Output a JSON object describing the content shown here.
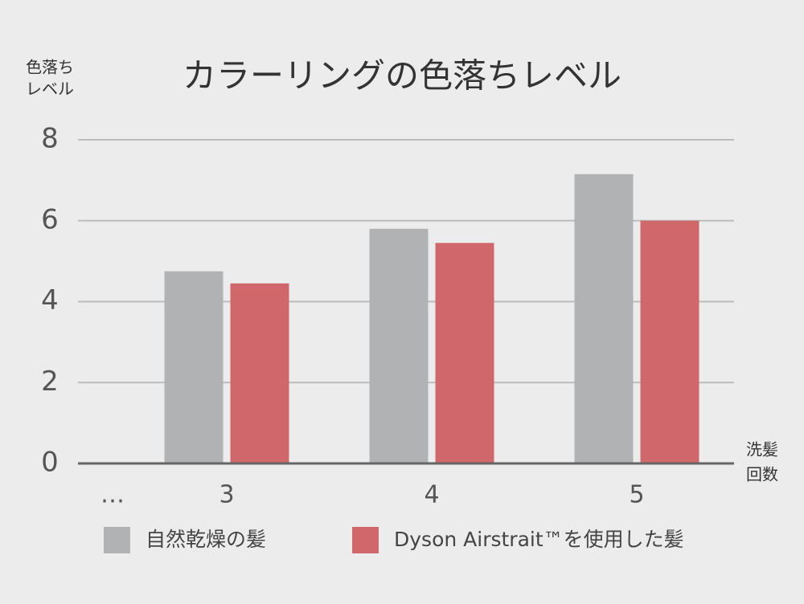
{
  "chart_data": {
    "type": "bar",
    "title": "カラーリングの色落ちレベル",
    "y_label": [
      "色落ち",
      "レベル"
    ],
    "x_label": [
      "洗髪",
      "回数"
    ],
    "categories": [
      "…",
      "3",
      "4",
      "5"
    ],
    "series": [
      {
        "name": "自然乾燥の髪",
        "color": "#b1b2b4",
        "values": [
          null,
          4.75,
          5.8,
          7.15
        ]
      },
      {
        "name": "Dyson Airstrait™を使用した髪",
        "color": "#cf676b",
        "values": [
          null,
          4.45,
          5.45,
          6.0
        ]
      }
    ],
    "ylim": [
      0,
      8
    ],
    "yticks": [
      0,
      2,
      4,
      6,
      8
    ],
    "grid": true
  }
}
